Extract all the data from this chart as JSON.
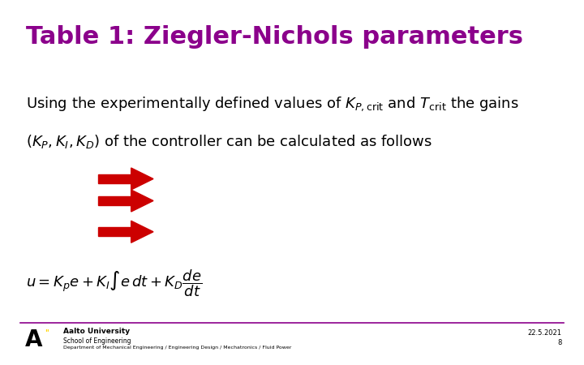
{
  "title": "Table 1: Ziegler-Nichols parameters",
  "title_color": "#8B008B",
  "title_fontsize": 22,
  "body_text_line1": "Using the experimentally defined values of $K_{P,\\mathrm{crit}}$ and $T_{\\mathrm{crit}}$ the gains",
  "body_text_line2": "$(K_P, K_I, K_D)$ of the controller can be calculated as follows",
  "body_fontsize": 13,
  "arrow_color": "#CC0000",
  "footer_line_color": "#8B008B",
  "footer_left_bold": "Aalto University",
  "footer_left_sub1": "School of Engineering",
  "footer_left_sub2": "Department of Mechanical Engineering / Engineering Design / Mechatronics / Fluid Power",
  "footer_right_line1": "22.5.2021",
  "footer_right_line2": "8",
  "bg_color": "#ffffff"
}
